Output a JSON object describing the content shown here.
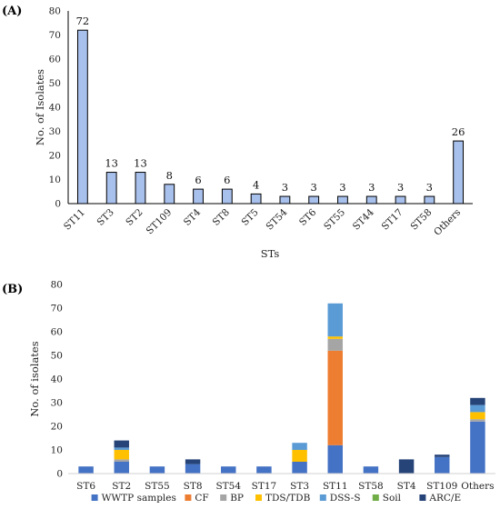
{
  "chart_data": [
    {
      "panel": "(A)",
      "type": "bar",
      "xlabel": "STs",
      "ylabel": "No. of Isolates",
      "ylim": [
        0,
        80
      ],
      "yticks": [
        0,
        10,
        20,
        30,
        40,
        50,
        60,
        70,
        80
      ],
      "categories": [
        "ST11",
        "ST3",
        "ST2",
        "ST109",
        "ST4",
        "ST8",
        "ST5",
        "ST54",
        "ST6",
        "ST55",
        "ST44",
        "ST17",
        "ST58",
        "Others"
      ],
      "values": [
        72,
        13,
        13,
        8,
        6,
        6,
        4,
        3,
        3,
        3,
        3,
        3,
        3,
        26
      ],
      "data_labels": [
        "72",
        "13",
        "13",
        "8",
        "6",
        "6",
        "4",
        "3",
        "3",
        "3",
        "3",
        "3",
        "3",
        "26"
      ],
      "bar_color": "#a8c0ec",
      "bar_edge": "#000000",
      "grid": false
    },
    {
      "panel": "(B)",
      "type": "bar",
      "stacked": true,
      "ylabel": "No. of isolates",
      "ylim": [
        0,
        80
      ],
      "yticks": [
        0,
        10,
        20,
        30,
        40,
        50,
        60,
        70,
        80
      ],
      "categories": [
        "ST6",
        "ST2",
        "ST55",
        "ST8",
        "ST54",
        "ST17",
        "ST3",
        "ST11",
        "ST58",
        "ST4",
        "ST109",
        "Others"
      ],
      "legend_position": "bottom",
      "grid": false,
      "series": [
        {
          "name": "WWTP samples",
          "color": "#4472c4",
          "values": [
            3,
            5,
            3,
            4,
            3,
            3,
            5,
            12,
            3,
            0,
            7,
            22
          ]
        },
        {
          "name": "CF",
          "color": "#ed7d31",
          "values": [
            0,
            0,
            0,
            0,
            0,
            0,
            0,
            40,
            0,
            0,
            0,
            0
          ]
        },
        {
          "name": "BP",
          "color": "#a5a5a5",
          "values": [
            0,
            1,
            0,
            0,
            0,
            0,
            0,
            5,
            0,
            0,
            0,
            1
          ]
        },
        {
          "name": "TDS/TDB",
          "color": "#ffc000",
          "values": [
            0,
            4,
            0,
            0,
            0,
            0,
            5,
            1,
            0,
            0,
            0,
            3
          ]
        },
        {
          "name": "DSS-S",
          "color": "#5b9bd5",
          "values": [
            0,
            1,
            0,
            0,
            0,
            0,
            3,
            14,
            0,
            0,
            0,
            3
          ]
        },
        {
          "name": "Soil",
          "color": "#70ad47",
          "values": [
            0,
            0,
            0,
            0,
            0,
            0,
            0,
            0,
            0,
            0,
            0,
            0
          ]
        },
        {
          "name": "ARC/E",
          "color": "#264478",
          "values": [
            0,
            3,
            0,
            2,
            0,
            0,
            0,
            0,
            0,
            6,
            1,
            3
          ]
        }
      ]
    }
  ]
}
